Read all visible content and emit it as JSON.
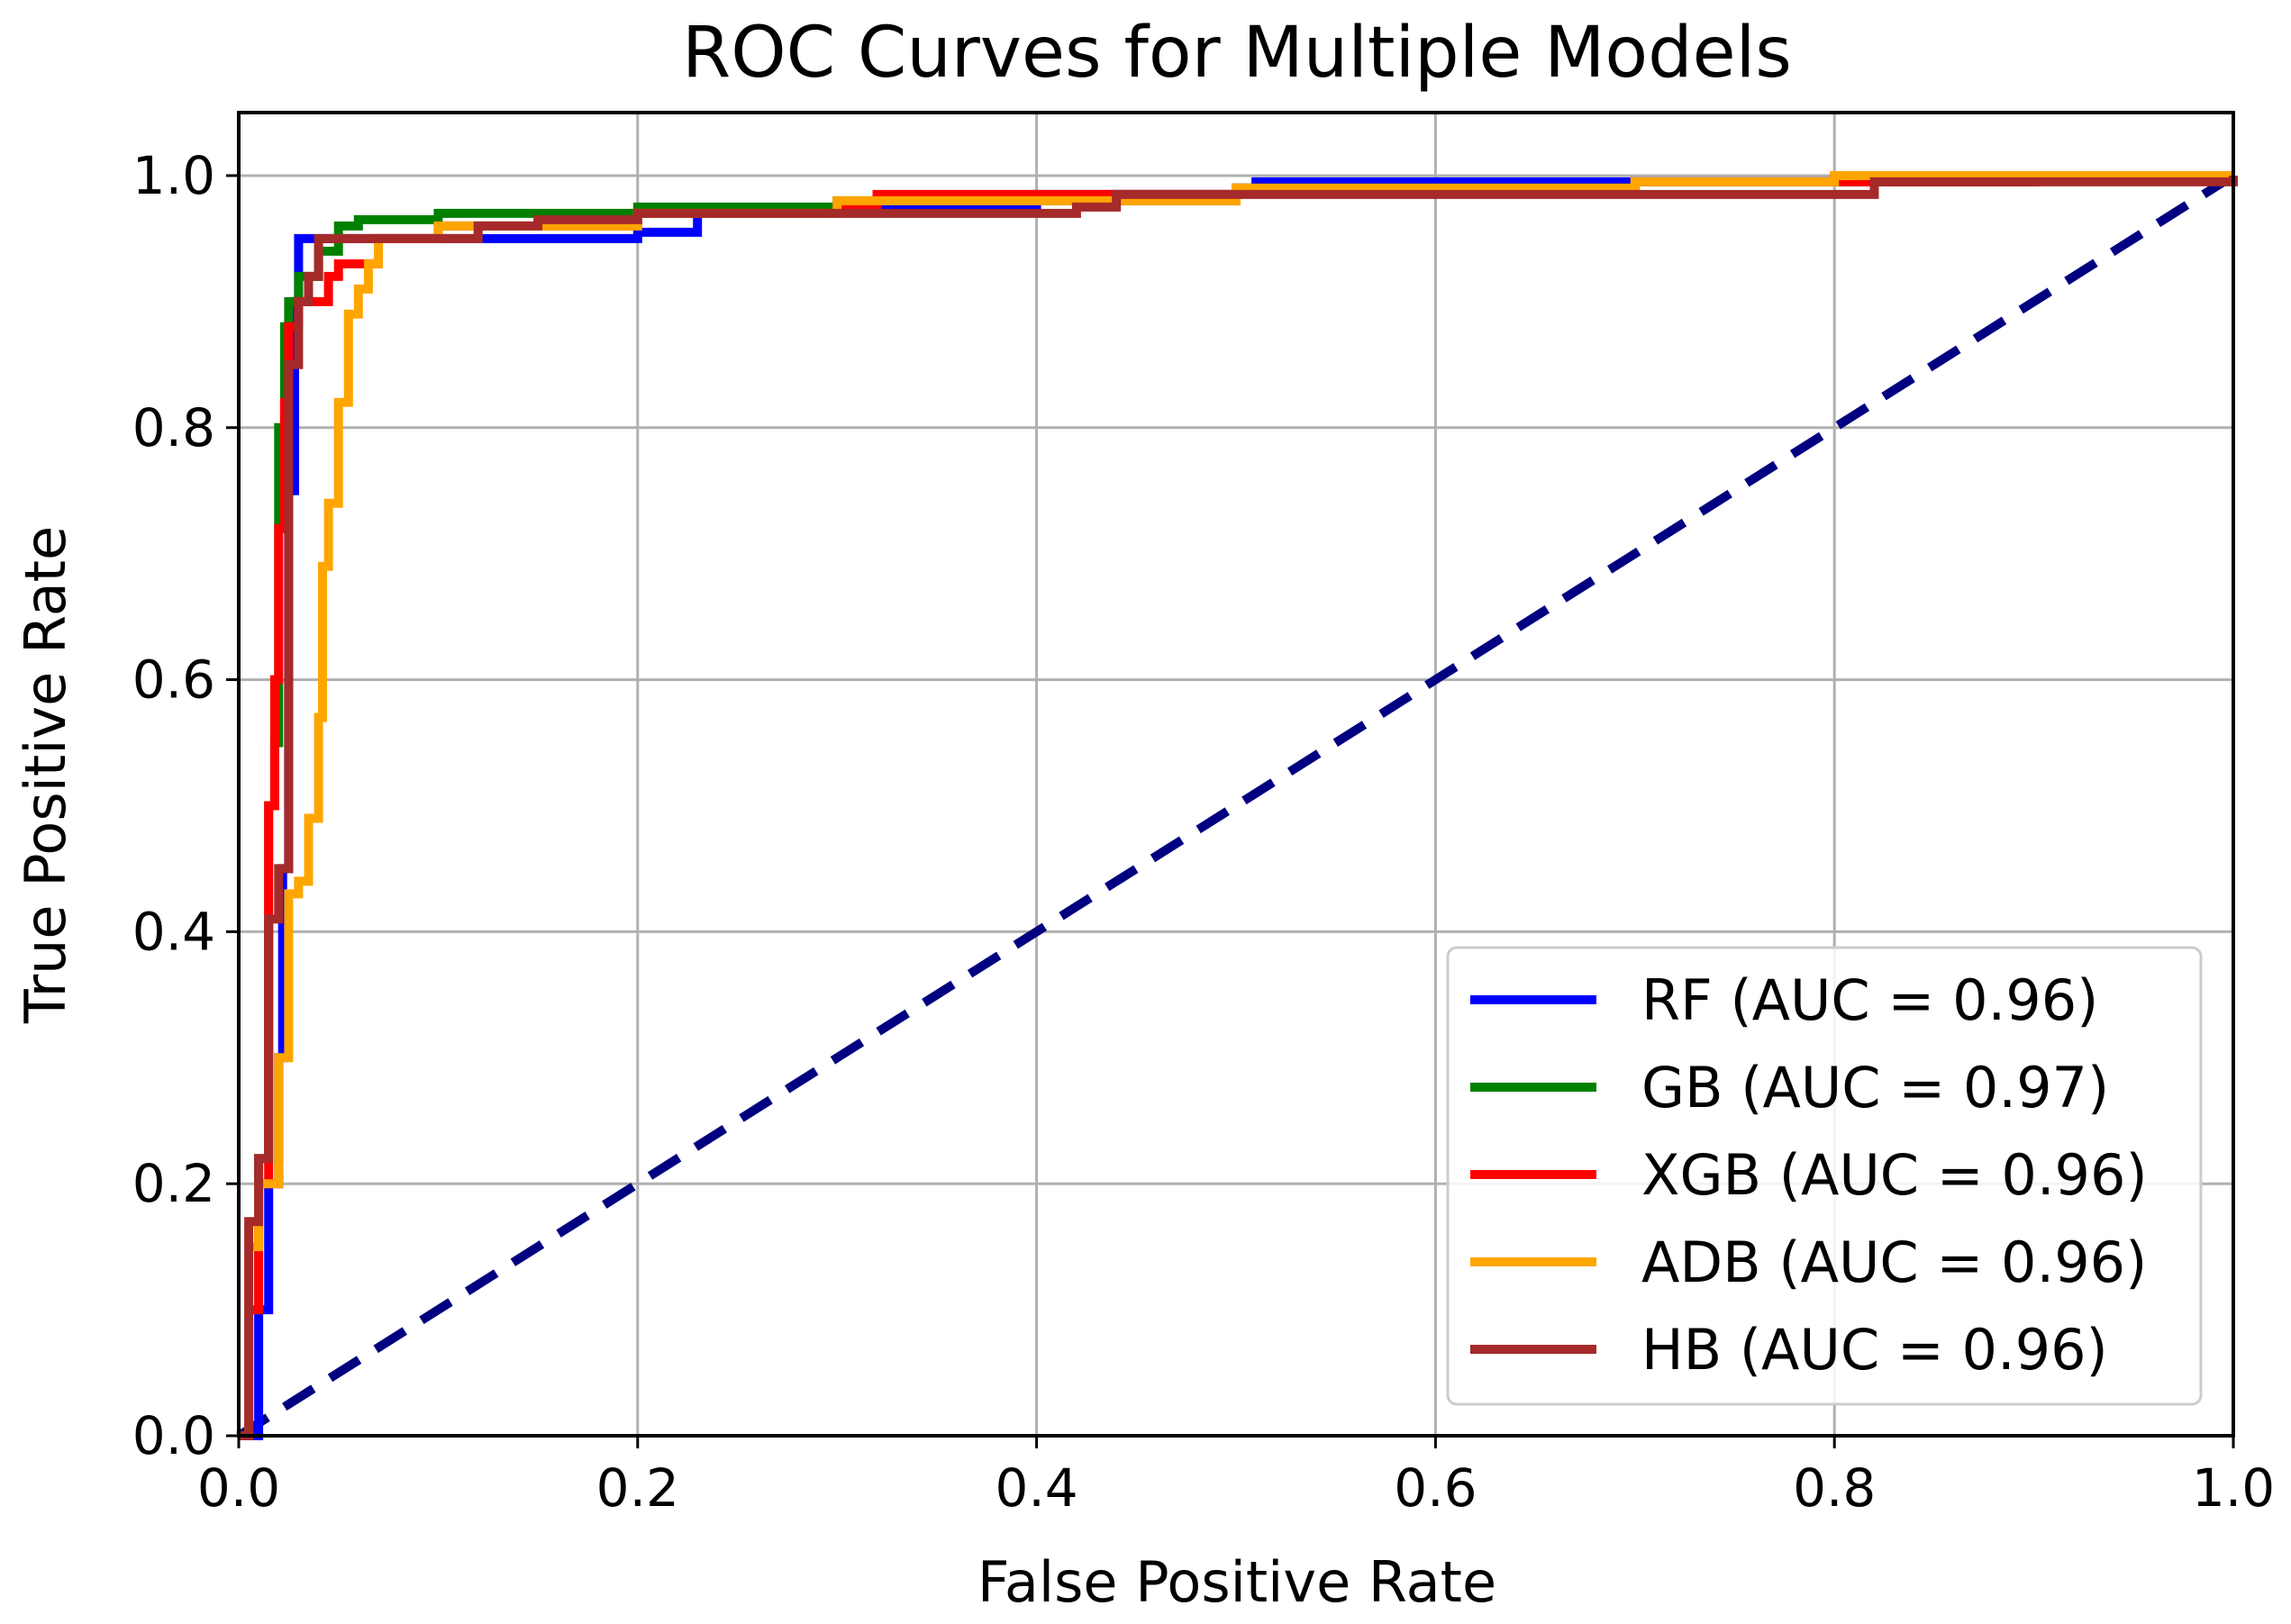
{
  "chart_data": {
    "type": "line",
    "title": "ROC Curves for Multiple Models",
    "xlabel": "False Positive Rate",
    "ylabel": "True Positive Rate",
    "xlim": [
      0.0,
      1.0
    ],
    "ylim": [
      0.0,
      1.05
    ],
    "xticks": [
      "0.0",
      "0.2",
      "0.4",
      "0.6",
      "0.8",
      "1.0"
    ],
    "yticks": [
      "0.0",
      "0.2",
      "0.4",
      "0.6",
      "0.8",
      "1.0"
    ],
    "grid": true,
    "legend_position": "lower-right",
    "series": [
      {
        "name": "RF (AUC = 0.96)",
        "color": "#0000ff",
        "x": [
          0.0,
          0.01,
          0.015,
          0.02,
          0.022,
          0.025,
          0.028,
          0.03,
          0.04,
          0.1,
          0.2,
          0.22,
          0.23,
          0.3,
          0.4,
          0.5,
          0.51,
          0.7,
          0.8,
          0.9,
          1.0
        ],
        "y": [
          0.0,
          0.1,
          0.2,
          0.3,
          0.45,
          0.75,
          0.9,
          0.95,
          0.95,
          0.95,
          0.955,
          0.955,
          0.97,
          0.975,
          0.985,
          0.99,
          0.995,
          0.995,
          0.998,
          0.999,
          1.0
        ]
      },
      {
        "name": "GB (AUC = 0.97)",
        "color": "#008000",
        "x": [
          0.0,
          0.005,
          0.01,
          0.015,
          0.018,
          0.02,
          0.023,
          0.025,
          0.03,
          0.04,
          0.05,
          0.06,
          0.1,
          0.2,
          0.3,
          0.5,
          0.7,
          0.9,
          1.0
        ],
        "y": [
          0.0,
          0.1,
          0.22,
          0.5,
          0.55,
          0.8,
          0.88,
          0.9,
          0.92,
          0.94,
          0.96,
          0.965,
          0.97,
          0.975,
          0.98,
          0.99,
          0.995,
          0.998,
          1.0
        ]
      },
      {
        "name": "XGB (AUC = 0.96)",
        "color": "#ff0000",
        "x": [
          0.0,
          0.005,
          0.01,
          0.015,
          0.018,
          0.02,
          0.023,
          0.025,
          0.03,
          0.04,
          0.045,
          0.05,
          0.07,
          0.1,
          0.2,
          0.3,
          0.32,
          0.5,
          0.7,
          0.9,
          1.0
        ],
        "y": [
          0.0,
          0.1,
          0.2,
          0.5,
          0.6,
          0.72,
          0.82,
          0.88,
          0.9,
          0.9,
          0.92,
          0.93,
          0.95,
          0.96,
          0.97,
          0.975,
          0.985,
          0.99,
          0.995,
          0.998,
          1.0
        ]
      },
      {
        "name": "ADB (AUC = 0.96)",
        "color": "#ffa500",
        "x": [
          0.0,
          0.005,
          0.01,
          0.02,
          0.025,
          0.03,
          0.035,
          0.04,
          0.042,
          0.045,
          0.05,
          0.055,
          0.06,
          0.065,
          0.07,
          0.1,
          0.2,
          0.3,
          0.5,
          0.7,
          0.8,
          1.0
        ],
        "y": [
          0.0,
          0.15,
          0.2,
          0.3,
          0.43,
          0.44,
          0.49,
          0.57,
          0.69,
          0.74,
          0.82,
          0.89,
          0.91,
          0.93,
          0.95,
          0.96,
          0.97,
          0.98,
          0.99,
          0.995,
          1.0,
          1.0
        ]
      },
      {
        "name": "HB (AUC = 0.96)",
        "color": "#a52a2a",
        "x": [
          0.0,
          0.005,
          0.01,
          0.015,
          0.02,
          0.025,
          0.03,
          0.035,
          0.04,
          0.1,
          0.12,
          0.15,
          0.2,
          0.3,
          0.35,
          0.42,
          0.44,
          0.6,
          0.8,
          0.82,
          0.92,
          1.0
        ],
        "y": [
          0.0,
          0.17,
          0.22,
          0.41,
          0.45,
          0.85,
          0.9,
          0.92,
          0.95,
          0.95,
          0.96,
          0.965,
          0.97,
          0.97,
          0.97,
          0.975,
          0.985,
          0.985,
          0.985,
          0.995,
          0.995,
          1.0
        ]
      }
    ],
    "reference_line": {
      "name": "chance",
      "color": "#000080",
      "style": "dashed",
      "x": [
        0.0,
        1.0
      ],
      "y": [
        0.0,
        1.0
      ]
    }
  }
}
